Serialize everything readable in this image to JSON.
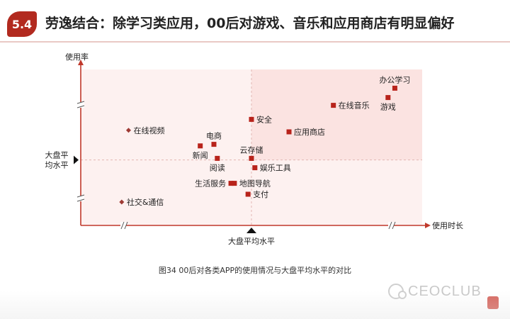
{
  "header": {
    "badge": "5.4",
    "title": "劳逸结合：除学习类应用，00后对游戏、音乐和应用商店有明显偏好"
  },
  "caption": "图34 00后对各类APP的使用情况与大盘平均水平的对比",
  "watermark": {
    "text": "CEOCLUB",
    "icon": "wechat-icon"
  },
  "colors": {
    "accent": "#b22a1f",
    "marker": "#b8231b",
    "quadrant_high": "#fbe3e1",
    "quadrant_low": "#fdf1f0"
  },
  "chart_data": {
    "type": "scatter",
    "xlabel": "使用时长",
    "ylabel": "使用率",
    "x_reference_label": "大盘平均水平",
    "y_reference_label": [
      "大盘平",
      "均水平"
    ],
    "xlim": [
      0,
      100
    ],
    "ylim": [
      0,
      100
    ],
    "reference": {
      "x": 50,
      "y": 42
    },
    "points": [
      {
        "label": "办公学习",
        "x": 92,
        "y": 88,
        "label_pos": "top"
      },
      {
        "label": "游戏",
        "x": 90,
        "y": 82,
        "label_pos": "bottom"
      },
      {
        "label": "在线音乐",
        "x": 74,
        "y": 77,
        "label_pos": "right"
      },
      {
        "label": "安全",
        "x": 50,
        "y": 68,
        "label_pos": "right"
      },
      {
        "label": "应用商店",
        "x": 61,
        "y": 60,
        "label_pos": "right"
      },
      {
        "label": "在线视频",
        "x": 14,
        "y": 61,
        "label_pos": "right",
        "style": "diamond"
      },
      {
        "label": "电商",
        "x": 39,
        "y": 52,
        "label_pos": "top"
      },
      {
        "label": "新闻",
        "x": 35,
        "y": 51,
        "label_pos": "bottom"
      },
      {
        "label": "阅读",
        "x": 40,
        "y": 43,
        "label_pos": "bottom"
      },
      {
        "label": "云存储",
        "x": 50,
        "y": 43,
        "label_pos": "top"
      },
      {
        "label": "娱乐工具",
        "x": 51,
        "y": 37,
        "label_pos": "right"
      },
      {
        "label": "生活服务",
        "x": 44,
        "y": 27,
        "label_pos": "left"
      },
      {
        "label": "地图导航",
        "x": 45,
        "y": 27,
        "label_pos": "right"
      },
      {
        "label": "支付",
        "x": 49,
        "y": 20,
        "label_pos": "right"
      },
      {
        "label": "社交&通信",
        "x": 12,
        "y": 15,
        "label_pos": "right",
        "style": "diamond"
      }
    ]
  }
}
